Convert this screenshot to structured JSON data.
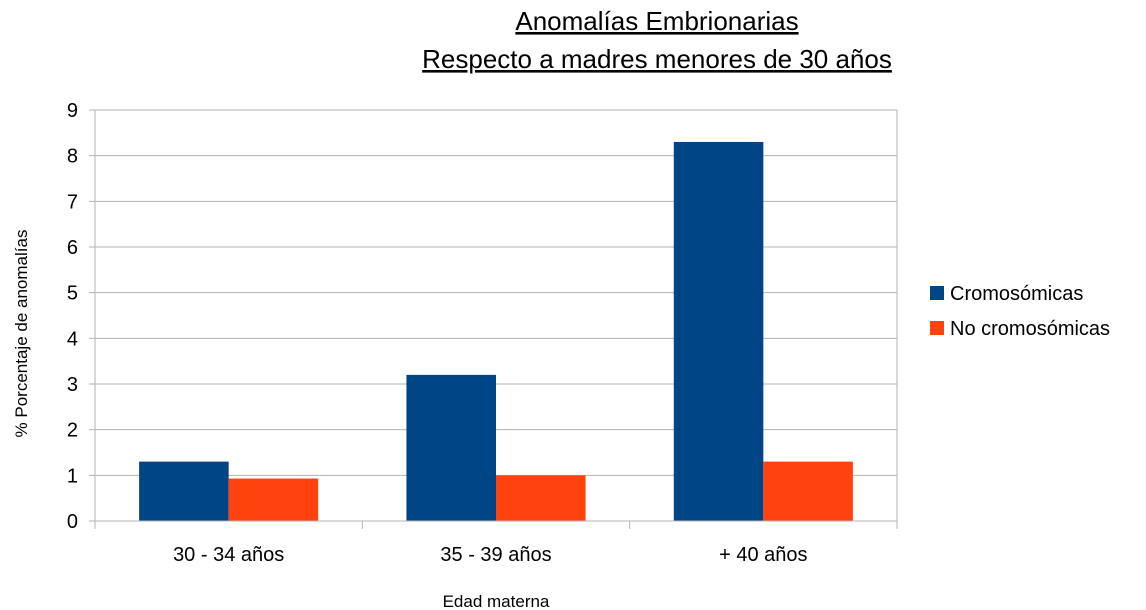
{
  "chart_data": {
    "type": "bar",
    "title": [
      "Anomalías Embrionarias",
      "Respecto a madres menores de 30 años"
    ],
    "xlabel": "Edad materna",
    "ylabel": "% Porcentaje de anomalías",
    "categories": [
      "30 - 34 años",
      "35 - 39 años",
      "+ 40 años"
    ],
    "series": [
      {
        "name": "Cromosómicas",
        "color": "#004586",
        "values": [
          1.3,
          3.2,
          8.3
        ]
      },
      {
        "name": "No cromosómicas",
        "color": "#ff420e",
        "values": [
          0.93,
          1.0,
          1.3
        ]
      }
    ],
    "ylim": [
      0,
      9
    ],
    "yticks": [
      0,
      1,
      2,
      3,
      4,
      5,
      6,
      7,
      8,
      9
    ],
    "grid": true,
    "legend_position": "right"
  }
}
